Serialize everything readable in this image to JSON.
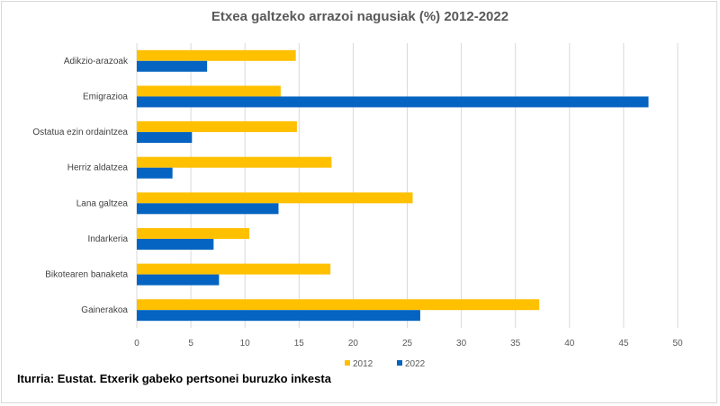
{
  "chart_data": {
    "type": "bar",
    "orientation": "horizontal",
    "title": "Etxea galtzeko arrazoi nagusiak (%) 2012-2022",
    "categories": [
      "Adikzio-arazoak",
      "Emigrazioa",
      "Ostatua ezin ordaintzea",
      "Herriz aldatzea",
      "Lana galtzea",
      "Indarkeria",
      "Bikotearen banaketa",
      "Gainerakoa"
    ],
    "series": [
      {
        "name": "2012",
        "color": "#FFC000",
        "values": [
          14.7,
          13.3,
          14.8,
          18.0,
          25.5,
          10.4,
          17.9,
          37.2
        ]
      },
      {
        "name": "2022",
        "color": "#0563C1",
        "values": [
          6.5,
          47.3,
          5.1,
          3.3,
          13.1,
          7.1,
          7.6,
          26.2
        ]
      }
    ],
    "xlim": [
      0,
      50
    ],
    "xticks": [
      0,
      5,
      10,
      15,
      20,
      25,
      30,
      35,
      40,
      45,
      50
    ],
    "grid": true,
    "legend_placement": "bottom"
  },
  "source": "Iturria: Eustat. Etxerik gabeko pertsonei buruzko inkesta"
}
